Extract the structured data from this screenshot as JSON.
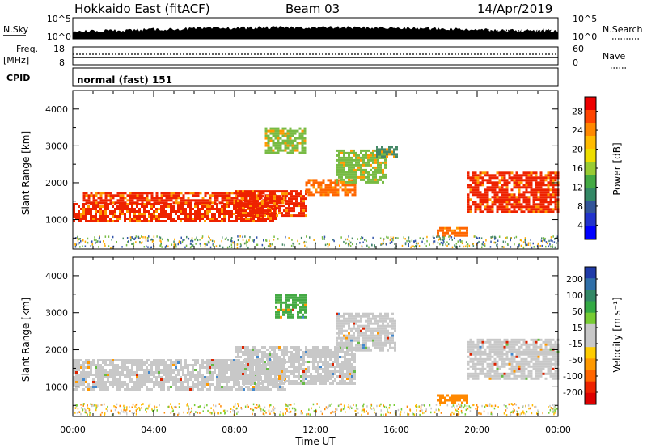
{
  "header": {
    "station": "Hokkaido East (fitACF)",
    "beam": "Beam 03",
    "date": "14/Apr/2019"
  },
  "strip": {
    "nsky_label": "N.Sky",
    "nsearch_label": "N.Search",
    "nsky_ticks": [
      "10^5",
      "10^0"
    ],
    "nsearch_ticks": [
      "10^5",
      "10^0"
    ],
    "freq_label_1": "Freq.",
    "freq_label_2": "[MHz]",
    "freq_ticks": [
      "18",
      "8"
    ],
    "nave_label": "Nave",
    "nave_ticks": [
      "60",
      "0"
    ],
    "cpid_label": "CPID",
    "cpid_value": "normal (fast) 151"
  },
  "axes": {
    "ylabel": "Slant Range [km]",
    "xlabel": "Time UT",
    "yticks": [
      "4000",
      "3000",
      "2000",
      "1000"
    ],
    "xticks": [
      "00:00",
      "04:00",
      "08:00",
      "12:00",
      "16:00",
      "20:00",
      "00:00"
    ]
  },
  "colorbars": {
    "power": {
      "label": "Power [dB]",
      "ticks": [
        "28",
        "24",
        "20",
        "16",
        "12",
        "8",
        "4"
      ],
      "colors": [
        "#ee0000",
        "#ff4400",
        "#ff8800",
        "#ffbb00",
        "#eedd00",
        "#99cc33",
        "#44aa44",
        "#338866",
        "#335599",
        "#2233cc",
        "#0000ff"
      ]
    },
    "velocity": {
      "label": "Velocity [m s⁻¹]",
      "ticks": [
        "200",
        "100",
        "50",
        "15",
        "-15",
        "-50",
        "-100",
        "-200"
      ],
      "colors": [
        "#1f3aa8",
        "#2f6fa8",
        "#338866",
        "#33aa44",
        "#77cc33",
        "#c8c8c8",
        "#c8c8c8",
        "#ffcc00",
        "#ff9900",
        "#ff6600",
        "#ee2200",
        "#dd0000"
      ]
    }
  },
  "chart_data": {
    "type": "heatmap",
    "x_unit": "hours UT",
    "y_unit": "km",
    "xlim": [
      0,
      24
    ],
    "ylim": [
      200,
      4500
    ],
    "power_echo_regions": [
      {
        "t": [
          0.0,
          10.0
        ],
        "range": [
          950,
          1450
        ],
        "level_db": 26
      },
      {
        "t": [
          0.5,
          10.5
        ],
        "range": [
          1450,
          1750
        ],
        "level_db": 24
      },
      {
        "t": [
          8.0,
          11.5
        ],
        "range": [
          1100,
          1800
        ],
        "level_db": 24
      },
      {
        "t": [
          11.5,
          14.0
        ],
        "range": [
          1650,
          2100
        ],
        "level_db": 20
      },
      {
        "t": [
          13.0,
          15.5
        ],
        "range": [
          2000,
          2900
        ],
        "level_db": 14
      },
      {
        "t": [
          15.0,
          16.0
        ],
        "range": [
          2700,
          3000
        ],
        "level_db": 8
      },
      {
        "t": [
          19.5,
          24.0
        ],
        "range": [
          1200,
          2300
        ],
        "level_db": 24
      },
      {
        "t": [
          18.0,
          19.5
        ],
        "range": [
          600,
          800
        ],
        "level_db": 22
      },
      {
        "t": [
          9.5,
          11.5
        ],
        "range": [
          2800,
          3500
        ],
        "level_db": 12
      }
    ],
    "velocity_echo_regions": [
      {
        "t": [
          0.0,
          10.5
        ],
        "range": [
          950,
          1750
        ],
        "level_ms": 0
      },
      {
        "t": [
          8.0,
          14.0
        ],
        "range": [
          1100,
          2100
        ],
        "level_ms": 0
      },
      {
        "t": [
          13.0,
          16.0
        ],
        "range": [
          2000,
          3000
        ],
        "level_ms": 0
      },
      {
        "t": [
          19.5,
          24.0
        ],
        "range": [
          1200,
          2300
        ],
        "level_ms": 0
      },
      {
        "t": [
          18.0,
          19.5
        ],
        "range": [
          600,
          800
        ],
        "level_ms": -80
      },
      {
        "t": [
          10.0,
          11.5
        ],
        "range": [
          2900,
          3500
        ],
        "level_ms": 60
      }
    ]
  }
}
